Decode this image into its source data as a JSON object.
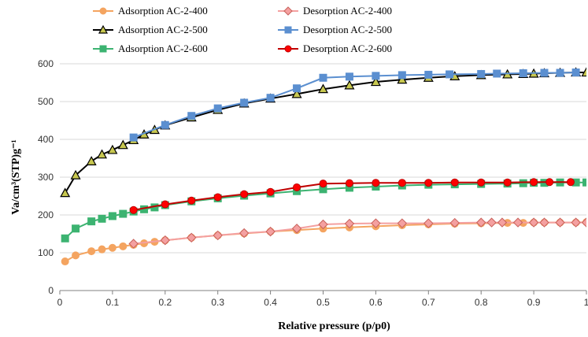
{
  "chart_data": {
    "type": "line",
    "xlabel": "Relative pressure (p/p0)",
    "ylabel": "Va/cm³(STP)g⁻¹",
    "xlim": [
      0,
      1
    ],
    "ylim": [
      0,
      600
    ],
    "xticks": [
      "0",
      "0.1",
      "0.2",
      "0.3",
      "0.4",
      "0.5",
      "0.6",
      "0.7",
      "0.8",
      "0.9",
      "1"
    ],
    "yticks": [
      "0",
      "100",
      "200",
      "300",
      "400",
      "500",
      "600"
    ],
    "grid": "horizontal",
    "legend_position": "top",
    "series": [
      {
        "name": "Adsorption AC-2-400",
        "line_color": "#f4a460",
        "marker_fill": "#f4a460",
        "marker_edge": "#f4a460",
        "marker": "circle",
        "x": [
          0.01,
          0.03,
          0.06,
          0.08,
          0.1,
          0.12,
          0.14,
          0.16,
          0.18,
          0.2,
          0.25,
          0.3,
          0.35,
          0.4,
          0.45,
          0.5,
          0.55,
          0.6,
          0.65,
          0.7,
          0.75,
          0.8,
          0.85,
          0.88,
          0.9,
          0.92,
          0.95,
          0.98,
          1.0
        ],
        "y": [
          77,
          93,
          104,
          109,
          113,
          117,
          121,
          125,
          129,
          133,
          140,
          146,
          151,
          156,
          160,
          164,
          167,
          170,
          173,
          175,
          177,
          178,
          179,
          179,
          180,
          180,
          180,
          180,
          181
        ]
      },
      {
        "name": "Desorption AC-2-400",
        "line_color": "#f4a0a0",
        "marker_fill": "#f4a0a0",
        "marker_edge": "#c8605a",
        "marker": "diamond",
        "x": [
          0.14,
          0.2,
          0.25,
          0.3,
          0.35,
          0.4,
          0.45,
          0.5,
          0.55,
          0.6,
          0.65,
          0.7,
          0.75,
          0.8,
          0.82,
          0.84,
          0.87,
          0.9,
          0.92,
          0.95,
          0.98,
          1.0
        ],
        "y": [
          124,
          133,
          140,
          146,
          152,
          156,
          164,
          175,
          177,
          178,
          178,
          178,
          179,
          180,
          180,
          180,
          180,
          180,
          180,
          180,
          180,
          180
        ]
      },
      {
        "name": "Adsorption AC-2-500",
        "line_color": "#000000",
        "marker_fill": "#c8c850",
        "marker_edge": "#000000",
        "marker": "triangle",
        "x": [
          0.01,
          0.03,
          0.06,
          0.08,
          0.1,
          0.12,
          0.14,
          0.16,
          0.18,
          0.2,
          0.25,
          0.3,
          0.35,
          0.4,
          0.45,
          0.5,
          0.55,
          0.6,
          0.65,
          0.7,
          0.75,
          0.8,
          0.85,
          0.88,
          0.9,
          0.92,
          0.95,
          0.98,
          1.0
        ],
        "y": [
          258,
          305,
          342,
          360,
          372,
          385,
          398,
          413,
          425,
          437,
          458,
          478,
          495,
          508,
          520,
          533,
          543,
          552,
          558,
          563,
          567,
          570,
          572,
          573,
          574,
          575,
          576,
          577,
          577
        ]
      },
      {
        "name": "Desorption AC-2-500",
        "line_color": "#5b8fd0",
        "marker_fill": "#5b8fd0",
        "marker_edge": "#5b8fd0",
        "marker": "square",
        "x": [
          0.14,
          0.2,
          0.25,
          0.3,
          0.35,
          0.4,
          0.45,
          0.5,
          0.55,
          0.6,
          0.65,
          0.7,
          0.74,
          0.8,
          0.83,
          0.88,
          0.92,
          0.95,
          0.98
        ],
        "y": [
          405,
          438,
          462,
          482,
          497,
          510,
          535,
          563,
          566,
          568,
          570,
          571,
          572,
          573,
          574,
          575,
          576,
          576,
          577
        ]
      },
      {
        "name": "Adsorption AC-2-600",
        "line_color": "#3cb371",
        "marker_fill": "#3cb371",
        "marker_edge": "#3cb371",
        "marker": "square",
        "x": [
          0.01,
          0.03,
          0.06,
          0.08,
          0.1,
          0.12,
          0.14,
          0.16,
          0.18,
          0.2,
          0.25,
          0.3,
          0.35,
          0.4,
          0.45,
          0.5,
          0.55,
          0.6,
          0.65,
          0.7,
          0.75,
          0.8,
          0.85,
          0.88,
          0.9,
          0.92,
          0.95,
          0.98,
          1.0
        ],
        "y": [
          138,
          164,
          183,
          190,
          197,
          203,
          209,
          215,
          220,
          226,
          236,
          244,
          251,
          257,
          263,
          268,
          272,
          275,
          278,
          280,
          281,
          282,
          283,
          284,
          285,
          285,
          286,
          286,
          286
        ]
      },
      {
        "name": "Desorption AC-2-600",
        "line_color": "#c00000",
        "marker_fill": "#ff0000",
        "marker_edge": "#c00000",
        "marker": "circle",
        "x": [
          0.14,
          0.2,
          0.25,
          0.3,
          0.35,
          0.4,
          0.45,
          0.5,
          0.55,
          0.6,
          0.65,
          0.7,
          0.75,
          0.8,
          0.85,
          0.9,
          0.93,
          0.97
        ],
        "y": [
          213,
          228,
          238,
          247,
          255,
          261,
          273,
          283,
          284,
          285,
          285,
          285,
          286,
          286,
          286,
          287,
          287,
          287
        ]
      }
    ]
  }
}
